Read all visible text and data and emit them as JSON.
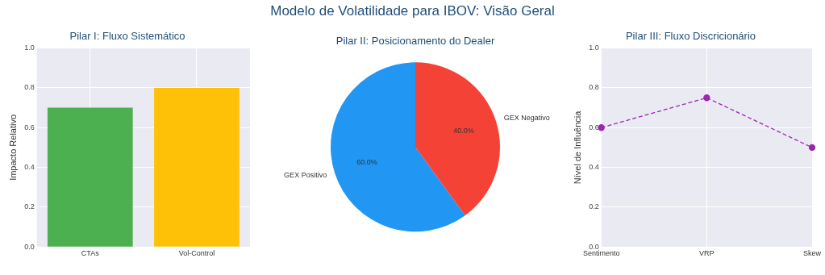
{
  "chart_data": [
    {
      "type": "other",
      "title": "Modelo de Volatilidade para IBOV: Visão Geral"
    },
    {
      "type": "bar",
      "title": "Pilar I: Fluxo Sistemático",
      "ylabel": "Impacto Relativo",
      "categories": [
        "CTAs",
        "Vol-Control"
      ],
      "values": [
        0.7,
        0.8
      ],
      "colors": [
        "#4caf50",
        "#ffc107"
      ],
      "ylim": [
        0,
        1
      ],
      "yticks": [
        {
          "value": 0,
          "label": "0.0"
        },
        {
          "value": 0.2,
          "label": "0.2"
        },
        {
          "value": 0.4,
          "label": "0.4"
        },
        {
          "value": 0.6,
          "label": "0.6"
        },
        {
          "value": 0.8,
          "label": "0.8"
        },
        {
          "value": 1,
          "label": "1.0"
        }
      ],
      "grid": true,
      "legend": false
    },
    {
      "type": "pie",
      "title": "Pilar II: Posicionamento do Dealer",
      "categories": [
        "GEX Positivo",
        "GEX Negativo"
      ],
      "values": [
        60,
        40
      ],
      "colors": [
        "#2196f3",
        "#f44336"
      ],
      "value_labels": [
        "60.0%",
        "40.0%"
      ],
      "legend": false
    },
    {
      "type": "line",
      "title": "Pilar III: Fluxo Discricionário",
      "ylabel": "Nível de Influência",
      "categories": [
        "Sentimento",
        "VRP",
        "Skew"
      ],
      "series": [
        {
          "color": "#9c27b0",
          "values": [
            0.6,
            0.75,
            0.5
          ]
        }
      ],
      "marker": "circle",
      "line_style": "dashed",
      "ylim": [
        0,
        1
      ],
      "yticks": [
        {
          "value": 0,
          "label": "0.0"
        },
        {
          "value": 0.2,
          "label": "0.2"
        },
        {
          "value": 0.4,
          "label": "0.4"
        },
        {
          "value": 0.6,
          "label": "0.6"
        },
        {
          "value": 0.8,
          "label": "0.8"
        },
        {
          "value": 1,
          "label": "1.0"
        }
      ],
      "grid": true,
      "legend": false
    }
  ]
}
